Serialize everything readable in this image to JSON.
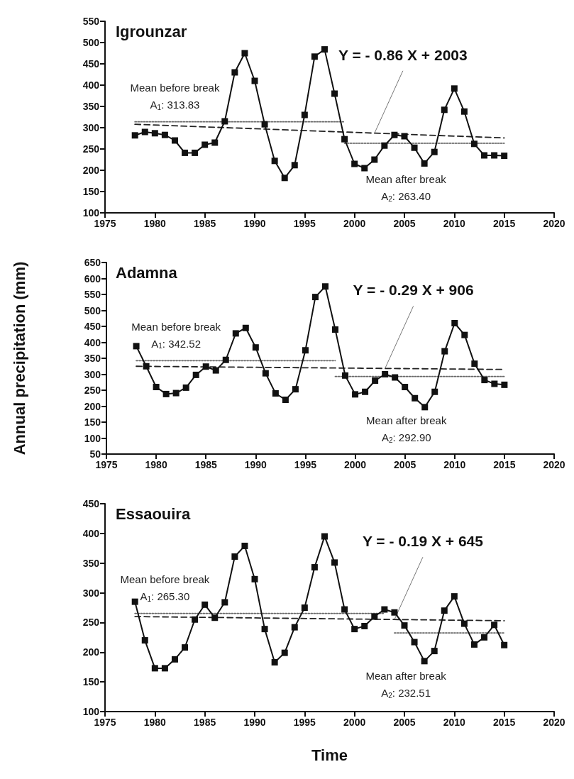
{
  "chart_data": [
    {
      "type": "line",
      "title": "Igrounzar",
      "xlim": [
        1975,
        2020
      ],
      "xticks": [
        1975,
        1980,
        1985,
        1990,
        1995,
        2000,
        2005,
        2010,
        2015,
        2020
      ],
      "ylim": [
        100,
        550
      ],
      "yticks": [
        100,
        150,
        200,
        250,
        300,
        350,
        400,
        450,
        500,
        550
      ],
      "grid": false,
      "x": [
        1978,
        1979,
        1980,
        1981,
        1982,
        1983,
        1984,
        1985,
        1986,
        1987,
        1988,
        1989,
        1990,
        1991,
        1992,
        1993,
        1994,
        1995,
        1996,
        1997,
        1998,
        1999,
        2000,
        2001,
        2002,
        2003,
        2004,
        2005,
        2006,
        2007,
        2008,
        2009,
        2010,
        2011,
        2012,
        2013,
        2014,
        2015
      ],
      "series": [
        {
          "color": "#111111",
          "marker": "square",
          "line_style": "solid",
          "values": [
            282,
            290,
            287,
            283,
            270,
            241,
            241,
            260,
            265,
            315,
            430,
            475,
            410,
            308,
            222,
            182,
            212,
            330,
            467,
            484,
            380,
            273,
            215,
            205,
            225,
            258,
            283,
            280,
            253,
            216,
            243,
            342,
            392,
            338,
            262,
            235,
            235,
            234
          ]
        },
        {
          "type": "line",
          "color": "#666666",
          "marker": "none",
          "line_style": "dotted",
          "x": [
            1978,
            1999
          ],
          "values": [
            313.83,
            313.83
          ]
        },
        {
          "type": "line",
          "color": "#666666",
          "marker": "none",
          "line_style": "dotted",
          "x": [
            1999,
            2015
          ],
          "values": [
            263.4,
            263.4
          ]
        },
        {
          "type": "line",
          "color": "#222222",
          "marker": "none",
          "line_style": "dashed",
          "x": [
            1978,
            2015
          ],
          "values": [
            308,
            276
          ]
        }
      ],
      "annotations": [
        {
          "text": "Mean before break\nA$_{1}$: 313.83",
          "x": 1982,
          "y": 313.83
        },
        "Mean after break\nA$_{2}$: 263.40",
        {
          "text": "Y = - 0.86 X + 2003",
          "x": 2002,
          "y": 287
        }
      ]
    },
    {
      "type": "line",
      "title": "Adamna",
      "ylabel": "Annual precipitation (mm)",
      "xlim": [
        1975,
        2020
      ],
      "xticks": [
        1975,
        1980,
        1985,
        1990,
        1995,
        2000,
        2005,
        2010,
        2015,
        2020
      ],
      "ylim": [
        50,
        650
      ],
      "yticks": [
        50,
        100,
        150,
        200,
        250,
        300,
        350,
        400,
        450,
        500,
        550,
        600,
        650
      ],
      "grid": false,
      "x": [
        1978,
        1979,
        1980,
        1981,
        1982,
        1983,
        1984,
        1985,
        1986,
        1987,
        1988,
        1989,
        1990,
        1991,
        1992,
        1993,
        1994,
        1995,
        1996,
        1997,
        1998,
        1999,
        2000,
        2001,
        2002,
        2003,
        2004,
        2005,
        2006,
        2007,
        2008,
        2009,
        2010,
        2011,
        2012,
        2013,
        2014,
        2015
      ],
      "series": [
        {
          "color": "#111111",
          "marker": "square",
          "line_style": "solid",
          "values": [
            388,
            325,
            260,
            238,
            241,
            258,
            298,
            324,
            312,
            345,
            428,
            445,
            384,
            303,
            240,
            220,
            253,
            375,
            542,
            575,
            440,
            296,
            237,
            245,
            280,
            300,
            290,
            260,
            225,
            197,
            245,
            372,
            460,
            423,
            333,
            282,
            270,
            267
          ]
        },
        {
          "type": "line",
          "color": "#666666",
          "marker": "none",
          "line_style": "dotted",
          "x": [
            1978,
            1998
          ],
          "values": [
            342.52,
            342.52
          ]
        },
        {
          "type": "line",
          "color": "#666666",
          "marker": "none",
          "line_style": "dotted",
          "x": [
            1998,
            2015
          ],
          "values": [
            292.9,
            292.9
          ]
        },
        {
          "type": "line",
          "color": "#222222",
          "marker": "none",
          "line_style": "dashed",
          "x": [
            1978,
            2015
          ],
          "values": [
            325,
            315
          ]
        }
      ],
      "annotations": [
        {
          "text": "Mean before break\nA$_{1}$: 342.52",
          "x": 1982,
          "y": 342.52
        },
        "Mean after break\nA$_{2}$: 292.90",
        {
          "text": "Y = - 0.29 X + 906",
          "x": 2003,
          "y": 318
        }
      ]
    },
    {
      "type": "line",
      "title": "Essaouira",
      "xlabel": "Time",
      "xlim": [
        1975,
        2020
      ],
      "xticks": [
        1975,
        1980,
        1985,
        1990,
        1995,
        2000,
        2005,
        2010,
        2015,
        2020
      ],
      "ylim": [
        100,
        450
      ],
      "yticks": [
        100,
        150,
        200,
        250,
        300,
        350,
        400,
        450
      ],
      "grid": false,
      "x": [
        1978,
        1979,
        1980,
        1981,
        1982,
        1983,
        1984,
        1985,
        1986,
        1987,
        1988,
        1989,
        1990,
        1991,
        1992,
        1993,
        1994,
        1995,
        1996,
        1997,
        1998,
        1999,
        2000,
        2001,
        2002,
        2003,
        2004,
        2005,
        2006,
        2007,
        2008,
        2009,
        2010,
        2011,
        2012,
        2013,
        2014,
        2015
      ],
      "series": [
        {
          "color": "#111111",
          "marker": "square",
          "line_style": "solid",
          "values": [
            285,
            220,
            173,
            173,
            188,
            208,
            255,
            280,
            258,
            284,
            361,
            379,
            323,
            239,
            183,
            199,
            242,
            275,
            343,
            395,
            351,
            272,
            239,
            244,
            260,
            272,
            267,
            245,
            217,
            185,
            202,
            270,
            294,
            248,
            213,
            225,
            246,
            212
          ]
        },
        {
          "type": "line",
          "color": "#666666",
          "marker": "none",
          "line_style": "dotted",
          "x": [
            1978,
            2003
          ],
          "values": [
            265.3,
            265.3
          ]
        },
        {
          "type": "line",
          "color": "#666666",
          "marker": "none",
          "line_style": "dotted",
          "x": [
            2004,
            2015
          ],
          "values": [
            232.51,
            232.51
          ]
        },
        {
          "type": "line",
          "color": "#222222",
          "marker": "none",
          "line_style": "dashed",
          "x": [
            1978,
            2015
          ],
          "values": [
            260,
            253
          ]
        }
      ],
      "annotations": [
        {
          "text": "Mean before break\nA$_{1}$: 265.30",
          "x": 1981,
          "y": 265.3
        },
        "Mean after break\nA$_{2}$: 232.51",
        {
          "text": "Y = - 0.19 X + 645",
          "x": 2004,
          "y": 255
        }
      ]
    }
  ]
}
